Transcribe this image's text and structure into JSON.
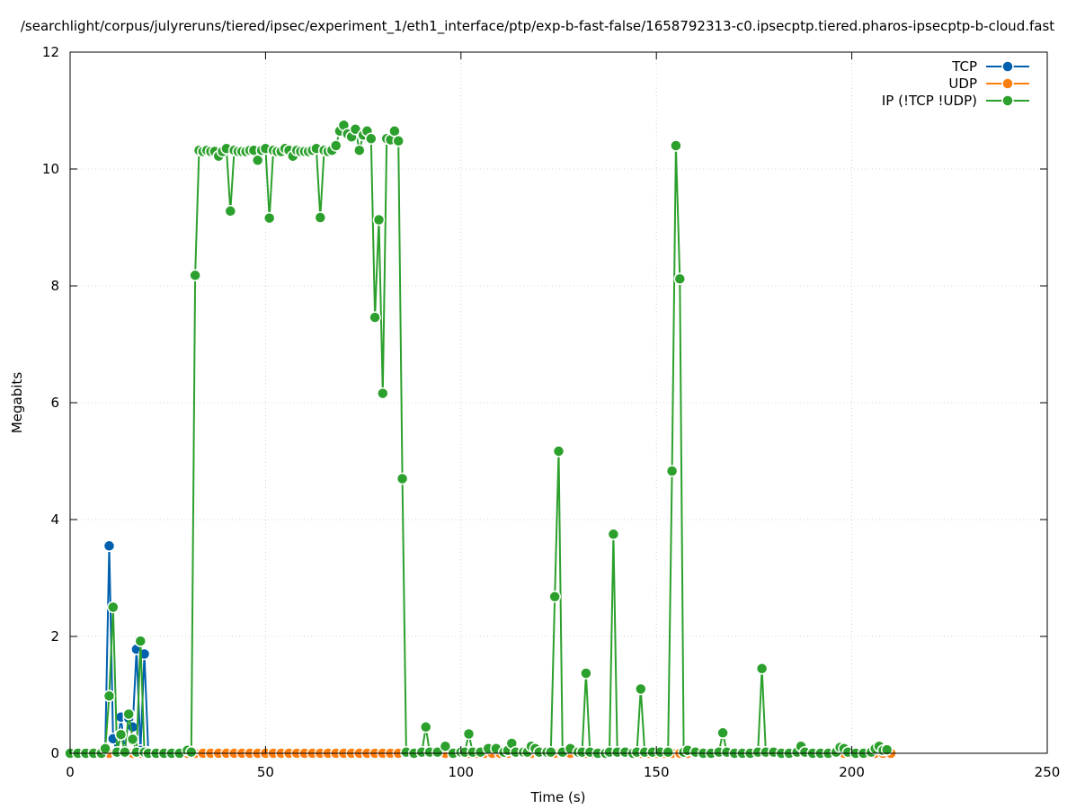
{
  "chart_data": {
    "type": "line",
    "title": "/searchlight/corpus/julyreruns/tiered/ipsec/experiment_1/eth1_interface/ptp/exp-b-fast-false/1658792313-c0.ipsecptp.tiered.pharos-ipsecptp-b-cloud.fast",
    "xlabel": "Time (s)",
    "ylabel": "Megabits",
    "xlim": [
      0,
      250
    ],
    "ylim": [
      0,
      12
    ],
    "x_ticks": [
      0,
      50,
      100,
      150,
      200,
      250
    ],
    "y_ticks": [
      0,
      2,
      4,
      6,
      8,
      10,
      12
    ],
    "grid": true,
    "legend_position": "top-right",
    "series": [
      {
        "name": "TCP",
        "color": "#0060ad",
        "points": [
          [
            0,
            0
          ],
          [
            1,
            0
          ],
          [
            2,
            0
          ],
          [
            3,
            0
          ],
          [
            4,
            0
          ],
          [
            5,
            0
          ],
          [
            6,
            0
          ],
          [
            7,
            0
          ],
          [
            8,
            0
          ],
          [
            9,
            0.08
          ],
          [
            10,
            3.55
          ],
          [
            11,
            0.25
          ],
          [
            12,
            0.02
          ],
          [
            13,
            0.62
          ],
          [
            14,
            0.05
          ],
          [
            15,
            0.6
          ],
          [
            16,
            0.45
          ],
          [
            17,
            1.78
          ],
          [
            18,
            0.05
          ],
          [
            19,
            1.7
          ],
          [
            20,
            0.02
          ],
          [
            22,
            0
          ],
          [
            25,
            0
          ],
          [
            30,
            0
          ],
          [
            35,
            0
          ],
          [
            40,
            0
          ],
          [
            50,
            0
          ],
          [
            60,
            0
          ],
          [
            70,
            0
          ],
          [
            80,
            0
          ],
          [
            86,
            0.02
          ],
          [
            90,
            0
          ],
          [
            100,
            0
          ],
          [
            110,
            0
          ],
          [
            120,
            0
          ],
          [
            130,
            0
          ],
          [
            140,
            0
          ],
          [
            150,
            0
          ],
          [
            160,
            0
          ],
          [
            170,
            0
          ],
          [
            180,
            0
          ],
          [
            190,
            0
          ],
          [
            200,
            0
          ],
          [
            210,
            0
          ]
        ]
      },
      {
        "name": "UDP",
        "color": "#ff7f0e",
        "points": [
          [
            0,
            0
          ],
          [
            2,
            0
          ],
          [
            4,
            0
          ],
          [
            6,
            0
          ],
          [
            8,
            0
          ],
          [
            10,
            0
          ],
          [
            12,
            0
          ],
          [
            14,
            0
          ],
          [
            16,
            0
          ],
          [
            18,
            0
          ],
          [
            20,
            0
          ],
          [
            22,
            0
          ],
          [
            24,
            0
          ],
          [
            26,
            0
          ],
          [
            28,
            0
          ],
          [
            30,
            0
          ],
          [
            32,
            0
          ],
          [
            34,
            0
          ],
          [
            36,
            0
          ],
          [
            38,
            0
          ],
          [
            40,
            0
          ],
          [
            42,
            0
          ],
          [
            44,
            0
          ],
          [
            46,
            0
          ],
          [
            48,
            0
          ],
          [
            50,
            0
          ],
          [
            52,
            0
          ],
          [
            54,
            0
          ],
          [
            56,
            0
          ],
          [
            58,
            0
          ],
          [
            60,
            0
          ],
          [
            62,
            0
          ],
          [
            64,
            0
          ],
          [
            66,
            0
          ],
          [
            68,
            0
          ],
          [
            70,
            0
          ],
          [
            72,
            0
          ],
          [
            74,
            0
          ],
          [
            76,
            0
          ],
          [
            78,
            0
          ],
          [
            80,
            0
          ],
          [
            82,
            0
          ],
          [
            84,
            0
          ],
          [
            86,
            0
          ],
          [
            88,
            0
          ],
          [
            90,
            0
          ],
          [
            92,
            0
          ],
          [
            94,
            0
          ],
          [
            96,
            0
          ],
          [
            98,
            0
          ],
          [
            100,
            0
          ],
          [
            102,
            0
          ],
          [
            104,
            0
          ],
          [
            106,
            0
          ],
          [
            108,
            0
          ],
          [
            110,
            0
          ],
          [
            112,
            0
          ],
          [
            114,
            0
          ],
          [
            116,
            0
          ],
          [
            118,
            0
          ],
          [
            120,
            0
          ],
          [
            122,
            0
          ],
          [
            124,
            0
          ],
          [
            126,
            0
          ],
          [
            128,
            0
          ],
          [
            130,
            0
          ],
          [
            132,
            0
          ],
          [
            134,
            0
          ],
          [
            136,
            0
          ],
          [
            138,
            0
          ],
          [
            140,
            0
          ],
          [
            142,
            0
          ],
          [
            144,
            0
          ],
          [
            146,
            0
          ],
          [
            148,
            0
          ],
          [
            150,
            0
          ],
          [
            152,
            0
          ],
          [
            154,
            0
          ],
          [
            156,
            0
          ],
          [
            158,
            0
          ],
          [
            160,
            0
          ],
          [
            162,
            0
          ],
          [
            164,
            0
          ],
          [
            166,
            0
          ],
          [
            168,
            0
          ],
          [
            170,
            0
          ],
          [
            172,
            0
          ],
          [
            174,
            0
          ],
          [
            176,
            0
          ],
          [
            178,
            0
          ],
          [
            180,
            0
          ],
          [
            182,
            0
          ],
          [
            184,
            0
          ],
          [
            186,
            0
          ],
          [
            188,
            0
          ],
          [
            190,
            0
          ],
          [
            192,
            0
          ],
          [
            194,
            0
          ],
          [
            196,
            0
          ],
          [
            198,
            0
          ],
          [
            200,
            0
          ],
          [
            202,
            0
          ],
          [
            204,
            0
          ],
          [
            206,
            0
          ],
          [
            208,
            0
          ],
          [
            210,
            0
          ]
        ]
      },
      {
        "name": "IP (!TCP  !UDP)",
        "color": "#2ca02c",
        "points": [
          [
            0,
            0
          ],
          [
            2,
            0
          ],
          [
            4,
            0
          ],
          [
            6,
            0
          ],
          [
            8,
            0
          ],
          [
            9,
            0.08
          ],
          [
            10,
            0.98
          ],
          [
            11,
            2.5
          ],
          [
            12,
            0.02
          ],
          [
            13,
            0.32
          ],
          [
            14,
            0.02
          ],
          [
            15,
            0.67
          ],
          [
            16,
            0.24
          ],
          [
            17,
            0.02
          ],
          [
            18,
            1.92
          ],
          [
            19,
            0.02
          ],
          [
            20,
            0
          ],
          [
            22,
            0
          ],
          [
            24,
            0
          ],
          [
            26,
            0
          ],
          [
            28,
            0
          ],
          [
            30,
            0.05
          ],
          [
            31,
            0.02
          ],
          [
            32,
            8.18
          ],
          [
            33,
            10.32
          ],
          [
            34,
            10.3
          ],
          [
            35,
            10.32
          ],
          [
            36,
            10.3
          ],
          [
            37,
            10.3
          ],
          [
            38,
            10.22
          ],
          [
            39,
            10.3
          ],
          [
            40,
            10.35
          ],
          [
            41,
            9.28
          ],
          [
            42,
            10.32
          ],
          [
            43,
            10.3
          ],
          [
            44,
            10.3
          ],
          [
            45,
            10.3
          ],
          [
            46,
            10.32
          ],
          [
            47,
            10.32
          ],
          [
            48,
            10.15
          ],
          [
            49,
            10.32
          ],
          [
            50,
            10.35
          ],
          [
            51,
            9.16
          ],
          [
            52,
            10.32
          ],
          [
            53,
            10.3
          ],
          [
            54,
            10.3
          ],
          [
            55,
            10.35
          ],
          [
            56,
            10.32
          ],
          [
            57,
            10.22
          ],
          [
            58,
            10.32
          ],
          [
            59,
            10.3
          ],
          [
            60,
            10.3
          ],
          [
            61,
            10.3
          ],
          [
            62,
            10.32
          ],
          [
            63,
            10.35
          ],
          [
            64,
            9.17
          ],
          [
            65,
            10.32
          ],
          [
            66,
            10.3
          ],
          [
            67,
            10.32
          ],
          [
            68,
            10.4
          ],
          [
            69,
            10.65
          ],
          [
            70,
            10.75
          ],
          [
            71,
            10.6
          ],
          [
            72,
            10.55
          ],
          [
            73,
            10.68
          ],
          [
            74,
            10.32
          ],
          [
            75,
            10.58
          ],
          [
            76,
            10.65
          ],
          [
            77,
            10.52
          ],
          [
            78,
            7.46
          ],
          [
            79,
            9.13
          ],
          [
            80,
            6.16
          ],
          [
            81,
            10.52
          ],
          [
            82,
            10.5
          ],
          [
            83,
            10.65
          ],
          [
            84,
            10.48
          ],
          [
            85,
            4.7
          ],
          [
            86,
            0.02
          ],
          [
            88,
            0
          ],
          [
            90,
            0.02
          ],
          [
            91,
            0.45
          ],
          [
            92,
            0.02
          ],
          [
            94,
            0.02
          ],
          [
            96,
            0.12
          ],
          [
            98,
            0
          ],
          [
            100,
            0.02
          ],
          [
            101,
            0.02
          ],
          [
            102,
            0.33
          ],
          [
            103,
            0.02
          ],
          [
            105,
            0.02
          ],
          [
            107,
            0.08
          ],
          [
            109,
            0.08
          ],
          [
            111,
            0.02
          ],
          [
            112,
            0.05
          ],
          [
            113,
            0.17
          ],
          [
            114,
            0.02
          ],
          [
            116,
            0.02
          ],
          [
            117,
            0.02
          ],
          [
            118,
            0.12
          ],
          [
            119,
            0.08
          ],
          [
            120,
            0.02
          ],
          [
            122,
            0.02
          ],
          [
            123,
            0.02
          ],
          [
            124,
            2.68
          ],
          [
            125,
            5.17
          ],
          [
            126,
            0.02
          ],
          [
            128,
            0.08
          ],
          [
            130,
            0.02
          ],
          [
            131,
            0.02
          ],
          [
            132,
            1.37
          ],
          [
            133,
            0.02
          ],
          [
            135,
            0
          ],
          [
            137,
            0
          ],
          [
            138,
            0.02
          ],
          [
            139,
            3.75
          ],
          [
            140,
            0.02
          ],
          [
            142,
            0.02
          ],
          [
            144,
            0
          ],
          [
            145,
            0.02
          ],
          [
            146,
            1.1
          ],
          [
            147,
            0.02
          ],
          [
            149,
            0.02
          ],
          [
            151,
            0.02
          ],
          [
            153,
            0.02
          ],
          [
            154,
            4.83
          ],
          [
            155,
            10.4
          ],
          [
            156,
            8.12
          ],
          [
            157,
            0.02
          ],
          [
            158,
            0.05
          ],
          [
            160,
            0.02
          ],
          [
            162,
            0
          ],
          [
            164,
            0
          ],
          [
            166,
            0.02
          ],
          [
            167,
            0.35
          ],
          [
            168,
            0.02
          ],
          [
            170,
            0
          ],
          [
            172,
            0
          ],
          [
            174,
            0
          ],
          [
            176,
            0.02
          ],
          [
            177,
            1.45
          ],
          [
            178,
            0.02
          ],
          [
            180,
            0.02
          ],
          [
            182,
            0
          ],
          [
            184,
            0
          ],
          [
            186,
            0.02
          ],
          [
            187,
            0.12
          ],
          [
            188,
            0.02
          ],
          [
            190,
            0
          ],
          [
            192,
            0
          ],
          [
            194,
            0
          ],
          [
            196,
            0.02
          ],
          [
            197,
            0.1
          ],
          [
            198,
            0.08
          ],
          [
            199,
            0.02
          ],
          [
            201,
            0
          ],
          [
            203,
            0
          ],
          [
            205,
            0.02
          ],
          [
            206,
            0.08
          ],
          [
            207,
            0.12
          ],
          [
            208,
            0.05
          ],
          [
            209,
            0.06
          ]
        ]
      }
    ]
  }
}
